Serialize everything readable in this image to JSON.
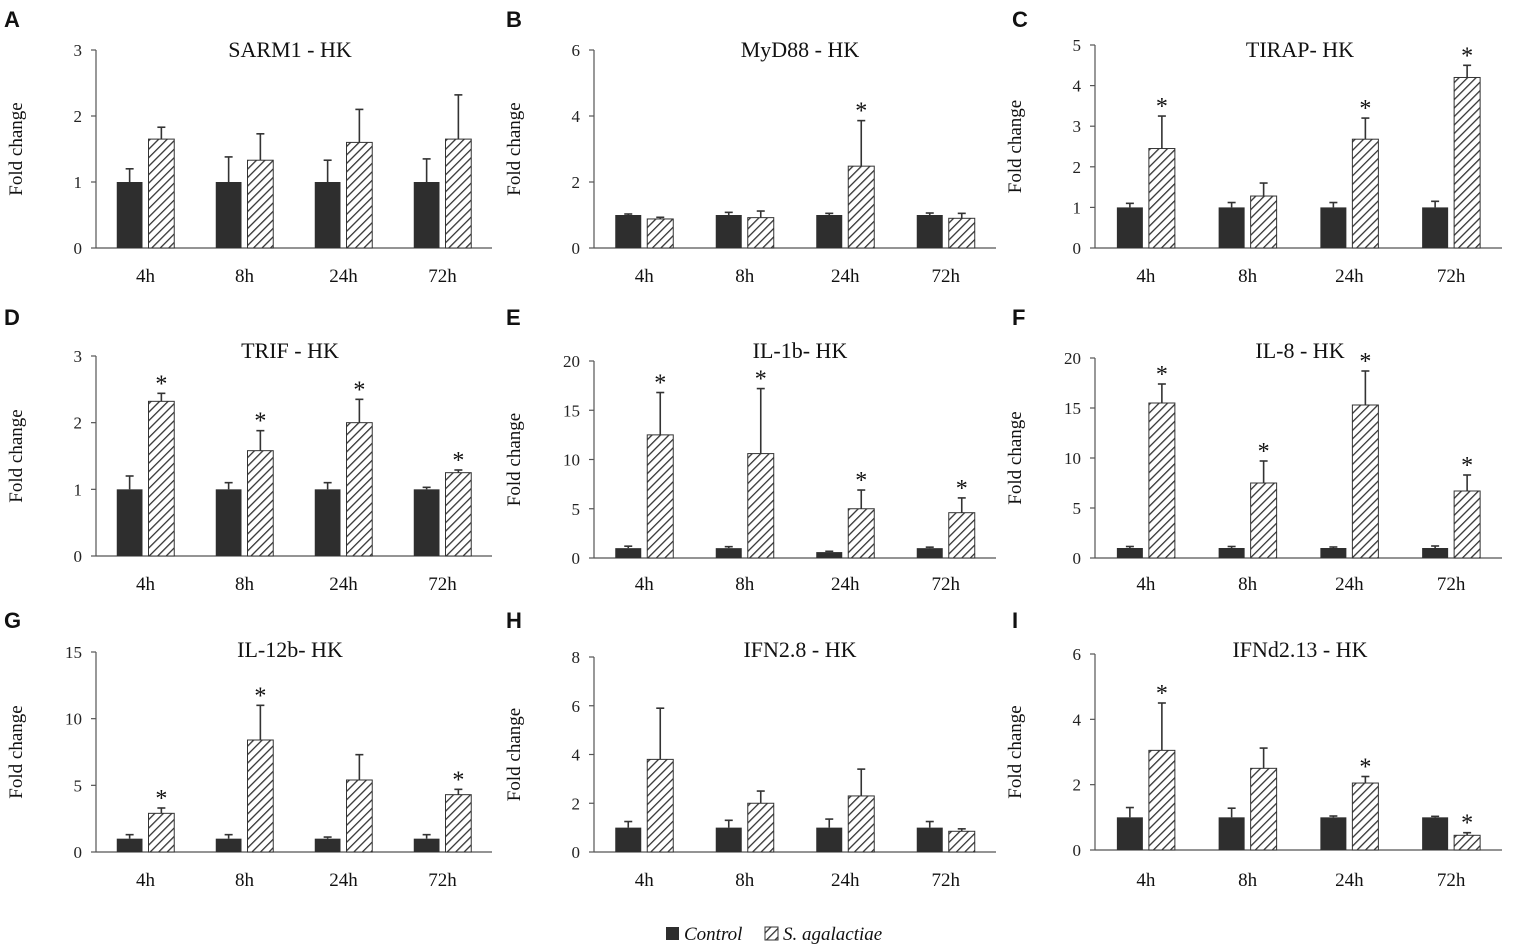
{
  "legend": {
    "control_label": "Control",
    "treated_label": "S. agalactiae",
    "control_color": "#2e2e2e",
    "hatch_color": "#333333"
  },
  "y_axis_label": "Fold change",
  "chart_data": [
    {
      "letter": "A",
      "title": "SARM1 - HK",
      "type": "bar",
      "categories": [
        "4h",
        "8h",
        "24h",
        "72h"
      ],
      "ylim": [
        0,
        3
      ],
      "yticks": [
        0,
        1,
        2,
        3
      ],
      "series": [
        {
          "name": "Control",
          "values": [
            1,
            1,
            1,
            1
          ],
          "errors": [
            0.2,
            0.38,
            0.33,
            0.35
          ]
        },
        {
          "name": "S. agalactiae",
          "values": [
            1.65,
            1.33,
            1.6,
            1.65
          ],
          "errors": [
            0.18,
            0.4,
            0.5,
            0.67
          ]
        }
      ],
      "significant": [
        false,
        false,
        false,
        false
      ]
    },
    {
      "letter": "B",
      "title": "MyD88 - HK",
      "type": "bar",
      "categories": [
        "4h",
        "8h",
        "24h",
        "72h"
      ],
      "ylim": [
        0,
        6
      ],
      "yticks": [
        0,
        2,
        4,
        6
      ],
      "series": [
        {
          "name": "Control",
          "values": [
            1,
            1,
            1,
            1
          ],
          "errors": [
            0.03,
            0.08,
            0.05,
            0.06
          ]
        },
        {
          "name": "S. agalactiae",
          "values": [
            0.88,
            0.92,
            2.48,
            0.9
          ],
          "errors": [
            0.05,
            0.2,
            1.38,
            0.15
          ]
        }
      ],
      "significant": [
        false,
        false,
        true,
        false
      ]
    },
    {
      "letter": "C",
      "title": "TIRAP- HK",
      "type": "bar",
      "categories": [
        "4h",
        "8h",
        "24h",
        "72h"
      ],
      "ylim": [
        0,
        5
      ],
      "yticks": [
        0,
        1,
        2,
        3,
        4,
        5
      ],
      "series": [
        {
          "name": "Control",
          "values": [
            1,
            1,
            1,
            1
          ],
          "errors": [
            0.1,
            0.12,
            0.12,
            0.15
          ]
        },
        {
          "name": "S. agalactiae",
          "values": [
            2.45,
            1.28,
            2.68,
            4.2
          ],
          "errors": [
            0.8,
            0.32,
            0.52,
            0.3
          ]
        }
      ],
      "significant": [
        true,
        false,
        true,
        true
      ]
    },
    {
      "letter": "D",
      "title": "TRIF - HK",
      "type": "bar",
      "categories": [
        "4h",
        "8h",
        "24h",
        "72h"
      ],
      "ylim": [
        0,
        3
      ],
      "yticks": [
        0,
        1,
        2,
        3
      ],
      "series": [
        {
          "name": "Control",
          "values": [
            1,
            1,
            1,
            1
          ],
          "errors": [
            0.2,
            0.1,
            0.1,
            0.03
          ]
        },
        {
          "name": "S. agalactiae",
          "values": [
            2.32,
            1.58,
            2.0,
            1.25
          ],
          "errors": [
            0.12,
            0.3,
            0.35,
            0.04
          ]
        }
      ],
      "significant": [
        true,
        true,
        true,
        true
      ]
    },
    {
      "letter": "E",
      "title": "IL-1b- HK",
      "type": "bar",
      "categories": [
        "4h",
        "8h",
        "24h",
        "72h"
      ],
      "ylim": [
        0,
        20
      ],
      "yticks": [
        0,
        5,
        10,
        15,
        20
      ],
      "series": [
        {
          "name": "Control",
          "values": [
            1,
            1,
            0.6,
            1
          ],
          "errors": [
            0.2,
            0.15,
            0.08,
            0.1
          ]
        },
        {
          "name": "S. agalactiae",
          "values": [
            12.5,
            10.6,
            5.0,
            4.6
          ],
          "errors": [
            4.3,
            6.6,
            1.9,
            1.5
          ]
        }
      ],
      "significant": [
        true,
        true,
        true,
        true
      ]
    },
    {
      "letter": "F",
      "title": "IL-8 - HK",
      "type": "bar",
      "categories": [
        "4h",
        "8h",
        "24h",
        "72h"
      ],
      "ylim": [
        0,
        20
      ],
      "yticks": [
        0,
        5,
        10,
        15,
        20
      ],
      "series": [
        {
          "name": "Control",
          "values": [
            1,
            1,
            1,
            1
          ],
          "errors": [
            0.15,
            0.15,
            0.1,
            0.2
          ]
        },
        {
          "name": "S. agalactiae",
          "values": [
            15.5,
            7.5,
            15.3,
            6.7
          ],
          "errors": [
            1.9,
            2.2,
            3.4,
            1.6
          ]
        }
      ],
      "significant": [
        true,
        true,
        true,
        true
      ]
    },
    {
      "letter": "G",
      "title": "IL-12b- HK",
      "type": "bar",
      "categories": [
        "4h",
        "8h",
        "24h",
        "72h"
      ],
      "ylim": [
        0,
        15
      ],
      "yticks": [
        0,
        5,
        10,
        15
      ],
      "series": [
        {
          "name": "Control",
          "values": [
            1,
            1,
            1,
            1
          ],
          "errors": [
            0.3,
            0.3,
            0.12,
            0.3
          ]
        },
        {
          "name": "S. agalactiae",
          "values": [
            2.9,
            8.4,
            5.4,
            4.3
          ],
          "errors": [
            0.4,
            2.6,
            1.9,
            0.4
          ]
        }
      ],
      "significant": [
        true,
        true,
        false,
        true
      ]
    },
    {
      "letter": "H",
      "title": "IFN2.8 - HK",
      "type": "bar",
      "categories": [
        "4h",
        "8h",
        "24h",
        "72h"
      ],
      "ylim": [
        0,
        8
      ],
      "yticks": [
        0,
        2,
        4,
        6,
        8
      ],
      "series": [
        {
          "name": "Control",
          "values": [
            1,
            1,
            1,
            1
          ],
          "errors": [
            0.25,
            0.3,
            0.35,
            0.25
          ]
        },
        {
          "name": "S. agalactiae",
          "values": [
            3.8,
            2.0,
            2.3,
            0.85
          ],
          "errors": [
            2.1,
            0.5,
            1.1,
            0.1
          ]
        }
      ],
      "significant": [
        false,
        false,
        false,
        false
      ]
    },
    {
      "letter": "I",
      "title": "IFNd2.13 - HK",
      "type": "bar",
      "categories": [
        "4h",
        "8h",
        "24h",
        "72h"
      ],
      "ylim": [
        0,
        6
      ],
      "yticks": [
        0,
        2,
        4,
        6
      ],
      "series": [
        {
          "name": "Control",
          "values": [
            1,
            1,
            1,
            1
          ],
          "errors": [
            0.3,
            0.28,
            0.04,
            0.03
          ]
        },
        {
          "name": "S. agalactiae",
          "values": [
            3.05,
            2.5,
            2.05,
            0.45
          ],
          "errors": [
            1.45,
            0.62,
            0.2,
            0.08
          ]
        }
      ],
      "significant": [
        true,
        false,
        true,
        true
      ]
    }
  ]
}
